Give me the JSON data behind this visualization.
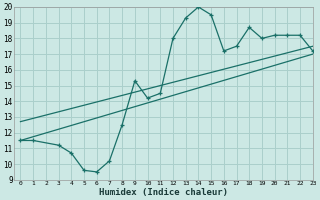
{
  "xlabel": "Humidex (Indice chaleur)",
  "bg_color": "#cce8e4",
  "grid_color": "#aacfcb",
  "line_color": "#1a7068",
  "curve1_x": [
    0,
    1,
    3,
    4,
    5,
    6,
    7,
    8,
    9,
    10,
    11,
    12,
    13,
    14,
    15,
    16,
    17,
    18,
    19,
    20,
    21,
    22,
    23
  ],
  "curve1_y": [
    11.5,
    11.5,
    11.2,
    10.7,
    9.6,
    9.5,
    10.2,
    12.5,
    15.3,
    14.2,
    14.5,
    18.0,
    19.3,
    20.0,
    19.5,
    17.2,
    17.5,
    18.7,
    18.0,
    18.2,
    18.2,
    18.2,
    17.2
  ],
  "line1_x": [
    0,
    23
  ],
  "line1_y": [
    11.5,
    17.0
  ],
  "line2_x": [
    0,
    23
  ],
  "line2_y": [
    12.7,
    17.5
  ],
  "xmin": -0.5,
  "xmax": 23,
  "ymin": 9,
  "ymax": 20,
  "xticks": [
    0,
    1,
    2,
    3,
    4,
    5,
    6,
    7,
    8,
    9,
    10,
    11,
    12,
    13,
    14,
    15,
    16,
    17,
    18,
    19,
    20,
    21,
    22,
    23
  ],
  "yticks": [
    9,
    10,
    11,
    12,
    13,
    14,
    15,
    16,
    17,
    18,
    19,
    20
  ]
}
